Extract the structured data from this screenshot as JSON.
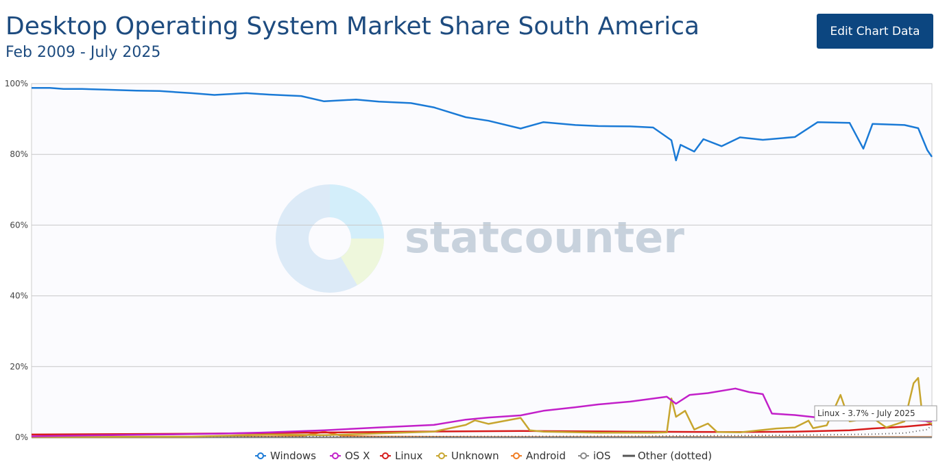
{
  "page": {
    "title": "Desktop Operating System Market Share South America",
    "subtitle": "Feb 2009 - July 2025",
    "edit_button": "Edit Chart Data",
    "watermark": "statcounter",
    "tooltip": "Linux - 3.7% - July 2025"
  },
  "chart_data": {
    "type": "line",
    "title": "Desktop Operating System Market Share South America",
    "subtitle": "Feb 2009 - July 2025",
    "x_range": [
      "2009-02",
      "2025-07"
    ],
    "ylim": [
      0,
      100
    ],
    "y_ticks": [
      0,
      20,
      40,
      60,
      80,
      100
    ],
    "y_tick_labels": [
      "0%",
      "20%",
      "40%",
      "60%",
      "80%",
      "100%"
    ],
    "grid": true,
    "legend_position": "bottom",
    "series": [
      {
        "name": "Windows",
        "color": "#1a7ad6",
        "points": [
          [
            "2009-02",
            98.8
          ],
          [
            "2009-06",
            98.8
          ],
          [
            "2009-09",
            98.5
          ],
          [
            "2010-01",
            98.5
          ],
          [
            "2010-06",
            98.3
          ],
          [
            "2011-01",
            98.0
          ],
          [
            "2011-06",
            97.9
          ],
          [
            "2012-01",
            97.3
          ],
          [
            "2012-06",
            96.8
          ],
          [
            "2013-01",
            97.3
          ],
          [
            "2013-06",
            96.9
          ],
          [
            "2014-01",
            96.5
          ],
          [
            "2014-06",
            95.0
          ],
          [
            "2015-01",
            95.5
          ],
          [
            "2015-06",
            94.9
          ],
          [
            "2016-01",
            94.5
          ],
          [
            "2016-06",
            93.3
          ],
          [
            "2017-01",
            90.5
          ],
          [
            "2017-06",
            89.5
          ],
          [
            "2018-01",
            87.3
          ],
          [
            "2018-06",
            89.1
          ],
          [
            "2019-01",
            88.3
          ],
          [
            "2019-06",
            88.0
          ],
          [
            "2020-01",
            87.9
          ],
          [
            "2020-06",
            87.6
          ],
          [
            "2020-10",
            84.0
          ],
          [
            "2020-11",
            78.3
          ],
          [
            "2020-12",
            82.7
          ],
          [
            "2021-03",
            80.8
          ],
          [
            "2021-05",
            84.3
          ],
          [
            "2021-09",
            82.3
          ],
          [
            "2022-01",
            84.8
          ],
          [
            "2022-06",
            84.1
          ],
          [
            "2023-01",
            84.9
          ],
          [
            "2023-06",
            89.1
          ],
          [
            "2024-01",
            88.9
          ],
          [
            "2024-04",
            81.6
          ],
          [
            "2024-06",
            88.6
          ],
          [
            "2025-01",
            88.3
          ],
          [
            "2025-04",
            87.4
          ],
          [
            "2025-06",
            81.2
          ],
          [
            "2025-07",
            79.3
          ]
        ]
      },
      {
        "name": "OS X",
        "color": "#c21fc9",
        "points": [
          [
            "2009-02",
            0.3
          ],
          [
            "2010-06",
            0.6
          ],
          [
            "2011-06",
            0.8
          ],
          [
            "2012-06",
            1.0
          ],
          [
            "2013-06",
            1.4
          ],
          [
            "2014-06",
            2.0
          ],
          [
            "2015-06",
            2.8
          ],
          [
            "2016-06",
            3.5
          ],
          [
            "2017-01",
            5.0
          ],
          [
            "2017-06",
            5.6
          ],
          [
            "2018-01",
            6.2
          ],
          [
            "2018-06",
            7.5
          ],
          [
            "2019-01",
            8.5
          ],
          [
            "2019-06",
            9.3
          ],
          [
            "2020-01",
            10.1
          ],
          [
            "2020-09",
            11.5
          ],
          [
            "2020-11",
            9.5
          ],
          [
            "2021-02",
            12.0
          ],
          [
            "2021-06",
            12.5
          ],
          [
            "2021-12",
            13.8
          ],
          [
            "2022-03",
            12.8
          ],
          [
            "2022-06",
            12.2
          ],
          [
            "2022-08",
            6.7
          ],
          [
            "2023-01",
            6.3
          ],
          [
            "2023-06",
            5.6
          ],
          [
            "2024-01",
            5.3
          ],
          [
            "2024-06",
            5.4
          ],
          [
            "2025-01",
            5.0
          ],
          [
            "2025-07",
            4.5
          ]
        ]
      },
      {
        "name": "Linux",
        "color": "#d61a1a",
        "points": [
          [
            "2009-02",
            0.8
          ],
          [
            "2010-06",
            0.9
          ],
          [
            "2012-01",
            1.0
          ],
          [
            "2014-01",
            1.3
          ],
          [
            "2016-01",
            1.6
          ],
          [
            "2018-01",
            1.8
          ],
          [
            "2020-01",
            1.6
          ],
          [
            "2022-01",
            1.5
          ],
          [
            "2023-01",
            1.6
          ],
          [
            "2024-01",
            2.0
          ],
          [
            "2024-06",
            2.5
          ],
          [
            "2025-01",
            3.0
          ],
          [
            "2025-07",
            3.7
          ]
        ]
      },
      {
        "name": "Unknown",
        "color": "#c7a52e",
        "points": [
          [
            "2009-02",
            0.1
          ],
          [
            "2012-01",
            0.2
          ],
          [
            "2013-06",
            0.8
          ],
          [
            "2014-06",
            0.6
          ],
          [
            "2015-06",
            1.1
          ],
          [
            "2016-06",
            1.6
          ],
          [
            "2017-01",
            3.5
          ],
          [
            "2017-03",
            4.8
          ],
          [
            "2017-06",
            3.8
          ],
          [
            "2018-01",
            5.5
          ],
          [
            "2018-03",
            2.0
          ],
          [
            "2018-06",
            1.6
          ],
          [
            "2019-06",
            1.3
          ],
          [
            "2020-06",
            1.3
          ],
          [
            "2020-09",
            1.4
          ],
          [
            "2020-10",
            11.0
          ],
          [
            "2020-11",
            5.8
          ],
          [
            "2021-01",
            7.5
          ],
          [
            "2021-03",
            2.2
          ],
          [
            "2021-06",
            3.9
          ],
          [
            "2021-08",
            1.5
          ],
          [
            "2022-01",
            1.4
          ],
          [
            "2022-09",
            2.5
          ],
          [
            "2023-01",
            2.8
          ],
          [
            "2023-04",
            4.7
          ],
          [
            "2023-05",
            2.6
          ],
          [
            "2023-08",
            3.4
          ],
          [
            "2023-11",
            12.0
          ],
          [
            "2024-01",
            4.5
          ],
          [
            "2024-06",
            5.5
          ],
          [
            "2024-09",
            2.8
          ],
          [
            "2025-01",
            4.5
          ],
          [
            "2025-03",
            15.3
          ],
          [
            "2025-04",
            16.8
          ],
          [
            "2025-05",
            5.0
          ],
          [
            "2025-07",
            3.8
          ]
        ]
      },
      {
        "name": "Android",
        "color": "#f07c22",
        "points": [
          [
            "2009-02",
            0.0
          ],
          [
            "2012-01",
            0.0
          ],
          [
            "2014-01",
            0.3
          ],
          [
            "2014-06",
            1.6
          ],
          [
            "2014-10",
            0.4
          ],
          [
            "2015-06",
            0.2
          ],
          [
            "2017-06",
            0.1
          ],
          [
            "2020-01",
            0.1
          ],
          [
            "2025-07",
            0.1
          ]
        ]
      },
      {
        "name": "iOS",
        "color": "#888888",
        "points": [
          [
            "2009-02",
            0.0
          ],
          [
            "2025-07",
            0.0
          ]
        ]
      },
      {
        "name": "Other (dotted)",
        "color": "#555555",
        "dotted": true,
        "points": [
          [
            "2009-02",
            0.2
          ],
          [
            "2015-01",
            0.2
          ],
          [
            "2020-01",
            0.3
          ],
          [
            "2023-01",
            0.6
          ],
          [
            "2024-06",
            0.9
          ],
          [
            "2025-01",
            1.2
          ],
          [
            "2025-06",
            2.2
          ],
          [
            "2025-07",
            3.5
          ]
        ]
      }
    ]
  }
}
